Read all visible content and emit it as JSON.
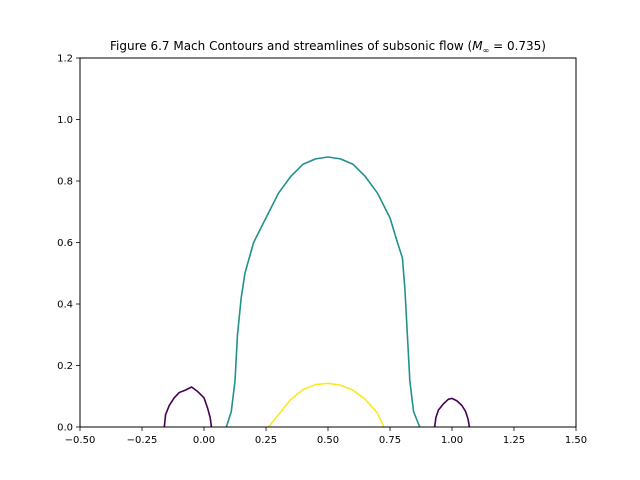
{
  "chart_data": {
    "type": "line",
    "title_prefix": "Figure 6.7 Mach Contours and streamlines of subsonic flow (",
    "title_math_var": "M",
    "title_math_sub": "∞",
    "title_math_eq": " = 0.735)",
    "xlim": [
      -0.5,
      1.5
    ],
    "ylim": [
      0.0,
      1.2
    ],
    "xticks": [
      -0.5,
      -0.25,
      0.0,
      0.25,
      0.5,
      0.75,
      1.0,
      1.25,
      1.5
    ],
    "xtick_labels": [
      "−0.50",
      "−0.25",
      "0.00",
      "0.25",
      "0.50",
      "0.75",
      "1.00",
      "1.25",
      "1.50"
    ],
    "yticks": [
      0.0,
      0.2,
      0.4,
      0.6,
      0.8,
      1.0,
      1.2
    ],
    "ytick_labels": [
      "0.0",
      "0.2",
      "0.4",
      "0.6",
      "0.8",
      "1.0",
      "1.2"
    ],
    "grid": false,
    "series": [
      {
        "color": "#440154",
        "points": [
          [
            -0.16,
            0.0
          ],
          [
            -0.155,
            0.04
          ],
          [
            -0.14,
            0.07
          ],
          [
            -0.12,
            0.095
          ],
          [
            -0.1,
            0.112
          ],
          [
            -0.075,
            0.12
          ],
          [
            -0.05,
            0.13
          ],
          [
            -0.025,
            0.115
          ],
          [
            0.0,
            0.095
          ],
          [
            0.015,
            0.06
          ],
          [
            0.025,
            0.03
          ],
          [
            0.03,
            0.0
          ]
        ]
      },
      {
        "color": "#440154",
        "points": [
          [
            0.93,
            0.0
          ],
          [
            0.935,
            0.03
          ],
          [
            0.945,
            0.055
          ],
          [
            0.965,
            0.075
          ],
          [
            0.985,
            0.09
          ],
          [
            1.0,
            0.093
          ],
          [
            1.02,
            0.085
          ],
          [
            1.04,
            0.07
          ],
          [
            1.055,
            0.05
          ],
          [
            1.065,
            0.025
          ],
          [
            1.07,
            0.0
          ]
        ]
      },
      {
        "color": "#21918c",
        "points": [
          [
            0.09,
            0.0
          ],
          [
            0.11,
            0.05
          ],
          [
            0.125,
            0.15
          ],
          [
            0.135,
            0.3
          ],
          [
            0.15,
            0.42
          ],
          [
            0.165,
            0.5
          ],
          [
            0.2,
            0.6
          ],
          [
            0.25,
            0.68
          ],
          [
            0.3,
            0.76
          ],
          [
            0.35,
            0.815
          ],
          [
            0.4,
            0.855
          ],
          [
            0.45,
            0.872
          ],
          [
            0.5,
            0.878
          ],
          [
            0.55,
            0.872
          ],
          [
            0.6,
            0.855
          ],
          [
            0.65,
            0.815
          ],
          [
            0.7,
            0.76
          ],
          [
            0.75,
            0.68
          ],
          [
            0.78,
            0.6
          ],
          [
            0.8,
            0.55
          ],
          [
            0.81,
            0.45
          ],
          [
            0.82,
            0.3
          ],
          [
            0.83,
            0.15
          ],
          [
            0.845,
            0.05
          ],
          [
            0.87,
            0.0
          ]
        ]
      },
      {
        "color": "#fde725",
        "points": [
          [
            0.26,
            0.0
          ],
          [
            0.3,
            0.04
          ],
          [
            0.35,
            0.09
          ],
          [
            0.4,
            0.122
          ],
          [
            0.45,
            0.138
          ],
          [
            0.5,
            0.142
          ],
          [
            0.55,
            0.136
          ],
          [
            0.6,
            0.12
          ],
          [
            0.65,
            0.09
          ],
          [
            0.7,
            0.045
          ],
          [
            0.725,
            0.0
          ]
        ]
      }
    ]
  }
}
